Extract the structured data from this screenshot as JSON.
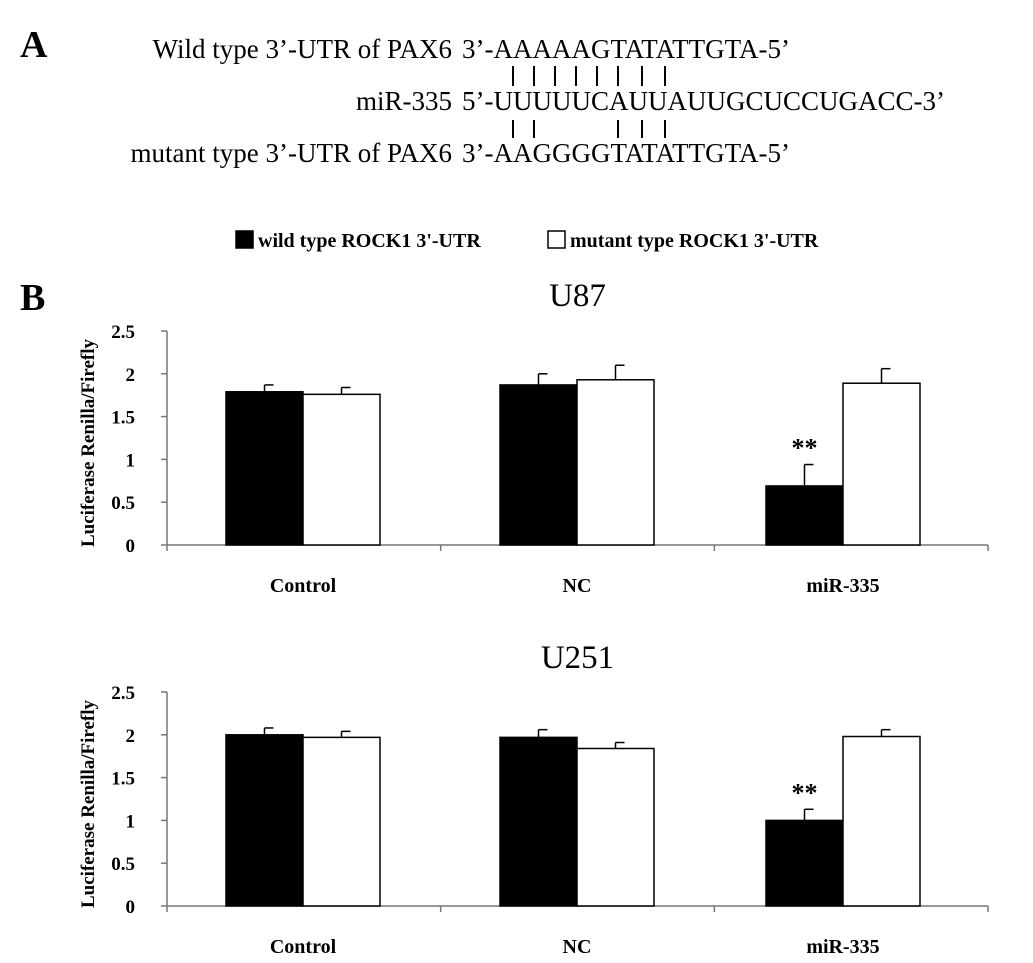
{
  "panel_a": {
    "letter": "A",
    "wild_label": "Wild type 3’-UTR of PAX6",
    "wild_seq": "3’-AAAAAGTATATTGTA-5’",
    "mirna_label": "miR-335",
    "mirna_seq": "5’-UUUUUCAUUAUUGCUCCUGACC-3’",
    "mutant_label": "mutant type 3’-UTR of PAX6",
    "mutant_seq": "3’-AAGGGGTATATTGTA-5’"
  },
  "panel_b": {
    "letter": "B"
  },
  "legend": {
    "position": "top-center",
    "items": [
      {
        "label": "wild type ROCK1 3'-UTR",
        "color": "#000000"
      },
      {
        "label": "mutant type ROCK1 3'-UTR",
        "color": "#ffffff"
      }
    ]
  },
  "chart_data": [
    {
      "type": "bar",
      "title": "U87",
      "ylabel": "Luciferase Renilla/Firefly",
      "xlabel": "",
      "categories": [
        "Control",
        "NC",
        "miR-335"
      ],
      "yticks": [
        "0",
        "0.5",
        "1",
        "1.5",
        "2",
        "2.5"
      ],
      "ylim": [
        0,
        2.5
      ],
      "grid": false,
      "series": [
        {
          "name": "wild type ROCK1 3'-UTR",
          "color": "#000000",
          "values": [
            1.79,
            1.87,
            0.69
          ],
          "errors": [
            0.08,
            0.13,
            0.25
          ]
        },
        {
          "name": "mutant type ROCK1 3'-UTR",
          "color": "#ffffff",
          "values": [
            1.76,
            1.93,
            1.89
          ],
          "errors": [
            0.08,
            0.17,
            0.17
          ]
        }
      ],
      "annotations": [
        {
          "category": "miR-335",
          "series": 0,
          "text": "**"
        }
      ]
    },
    {
      "type": "bar",
      "title": "U251",
      "ylabel": "Luciferase Renilla/Firefly",
      "xlabel": "",
      "categories": [
        "Control",
        "NC",
        "miR-335"
      ],
      "yticks": [
        "0",
        "0.5",
        "1",
        "1.5",
        "2",
        "2.5"
      ],
      "ylim": [
        0,
        2.5
      ],
      "grid": false,
      "series": [
        {
          "name": "wild type ROCK1 3'-UTR",
          "color": "#000000",
          "values": [
            2.0,
            1.97,
            1.0
          ],
          "errors": [
            0.08,
            0.09,
            0.13
          ]
        },
        {
          "name": "mutant type ROCK1 3'-UTR",
          "color": "#ffffff",
          "values": [
            1.97,
            1.84,
            1.98
          ],
          "errors": [
            0.07,
            0.07,
            0.08
          ]
        }
      ],
      "annotations": [
        {
          "category": "miR-335",
          "series": 0,
          "text": "**"
        }
      ]
    }
  ]
}
